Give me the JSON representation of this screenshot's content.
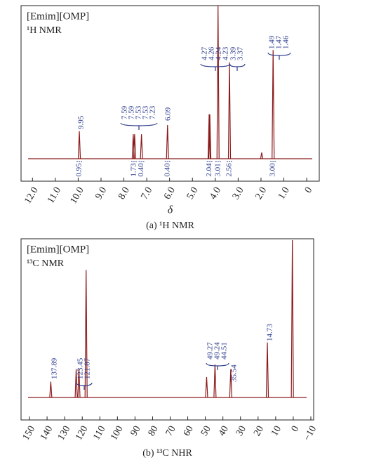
{
  "chart_data": [
    {
      "type": "spectrum",
      "title": "[Emim][OMP]",
      "subtitle": "¹H NMR",
      "xlabel": "δ",
      "caption": "(a) ¹H NMR",
      "color": "#8b1a1a",
      "label_color": "#2a3a8c",
      "xlim": [
        12.5,
        -0.55
      ],
      "ylim": [
        0,
        100
      ],
      "xticks": [
        {
          "value": 12,
          "label": "12.0"
        },
        {
          "value": 11,
          "label": "11.0"
        },
        {
          "value": 10,
          "label": "10.0"
        },
        {
          "value": 9,
          "label": "9.0"
        },
        {
          "value": 8,
          "label": "8.0"
        },
        {
          "value": 7,
          "label": "7.0"
        },
        {
          "value": 6,
          "label": "6.0"
        },
        {
          "value": 5,
          "label": "5.0"
        },
        {
          "value": 4,
          "label": "4.0"
        },
        {
          "value": 3,
          "label": "3.0"
        },
        {
          "value": 2,
          "label": "2.0"
        },
        {
          "value": 1,
          "label": "1.0"
        },
        0
      ],
      "peaks": {
        "x": [
          9.95,
          7.59,
          7.53,
          7.23,
          6.09,
          4.27,
          4.24,
          3.88,
          3.38,
          1.97,
          1.47
        ],
        "values": [
          18,
          16,
          16,
          16,
          22,
          29,
          29,
          100,
          63,
          4,
          71
        ]
      },
      "peak_labels": [
        {
          "labels": [
            "9.95"
          ]
        },
        {
          "labels": [
            "7.59",
            "7.59",
            "7.53",
            "7.53",
            "7.23"
          ]
        },
        {
          "labels": [
            "6.09"
          ]
        },
        {
          "labels": [
            "4.27",
            "4.26",
            "4.24",
            "4.23"
          ]
        },
        {
          "labels": [
            "3.39",
            "3.37"
          ]
        },
        {
          "labels": [
            "1.49",
            "1.47",
            "1.46"
          ]
        }
      ],
      "integrals": [
        {
          "label": "0.95",
          "at": 9.95
        },
        {
          "label": "1.73",
          "at": 7.56
        },
        {
          "label": "0.40",
          "at": 7.23
        },
        {
          "label": "0.40",
          "at": 6.09
        },
        {
          "label": "2.04",
          "at": 4.25
        },
        {
          "label": "3.01",
          "at": 3.88
        },
        {
          "label": "2.56",
          "at": 3.38
        },
        {
          "label": "3.00",
          "at": 1.47
        }
      ]
    },
    {
      "type": "spectrum",
      "title": "[Emim][OMP]",
      "subtitle": "¹³C NMR",
      "caption": "(b) ¹³C NHR",
      "color": "#8b1a1a",
      "label_color": "#2a3a8c",
      "xlim": [
        154.8,
        -11.6
      ],
      "ylim": [
        0,
        100
      ],
      "xticks": [
        150,
        140,
        130,
        120,
        110,
        100,
        90,
        80,
        70,
        60,
        50,
        40,
        30,
        20,
        10,
        0,
        {
          "value": -10,
          "label": "−10"
        }
      ],
      "peaks": {
        "x": [
          137.89,
          123.45,
          121.87,
          117.8,
          49.27,
          44.51,
          35.54,
          14.73,
          0.5
        ],
        "values": [
          10,
          18,
          18,
          81,
          13,
          21,
          18,
          35,
          100
        ]
      },
      "peak_labels": [
        {
          "labels": [
            "137.89"
          ]
        },
        {
          "labels": [
            "123.45",
            "121.87"
          ]
        },
        {
          "labels": [
            "49.27",
            "49.24",
            "44.51"
          ]
        },
        {
          "labels": [
            "35.54"
          ]
        },
        {
          "labels": [
            "14.73"
          ]
        }
      ]
    }
  ]
}
